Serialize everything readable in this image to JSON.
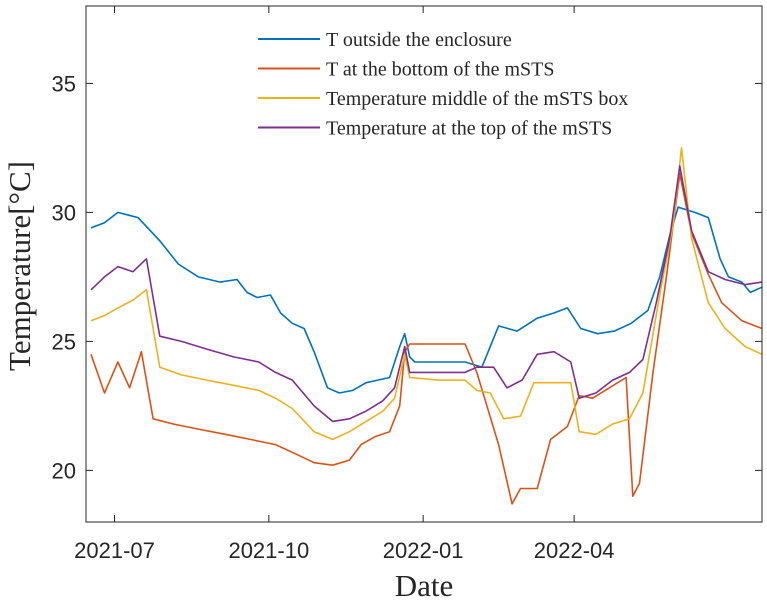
{
  "chart_data": {
    "type": "line",
    "xlabel": "Date",
    "ylabel": "Temperature[°C]",
    "x_ticks": [
      "2021-07",
      "2021-10",
      "2022-01",
      "2022-04"
    ],
    "y_ticks": [
      20,
      25,
      30,
      35
    ],
    "xlim": [
      "2021-06-14",
      "2022-07-22"
    ],
    "ylim": [
      18,
      38
    ],
    "legend_position": "top-right",
    "grid": false,
    "series": [
      {
        "name": "T outside the enclosure",
        "color": "#0072BD",
        "points": [
          [
            "2021-06-17",
            29.4
          ],
          [
            "2021-06-25",
            29.6
          ],
          [
            "2021-07-03",
            30.0
          ],
          [
            "2021-07-15",
            29.8
          ],
          [
            "2021-07-28",
            28.9
          ],
          [
            "2021-08-08",
            28.0
          ],
          [
            "2021-08-20",
            27.5
          ],
          [
            "2021-09-02",
            27.3
          ],
          [
            "2021-09-12",
            27.4
          ],
          [
            "2021-09-18",
            26.9
          ],
          [
            "2021-09-24",
            26.7
          ],
          [
            "2021-10-02",
            26.8
          ],
          [
            "2021-10-08",
            26.1
          ],
          [
            "2021-10-15",
            25.7
          ],
          [
            "2021-10-22",
            25.5
          ],
          [
            "2021-10-28",
            24.6
          ],
          [
            "2021-11-05",
            23.2
          ],
          [
            "2021-11-12",
            23.0
          ],
          [
            "2021-11-20",
            23.1
          ],
          [
            "2021-11-28",
            23.4
          ],
          [
            "2021-12-05",
            23.5
          ],
          [
            "2021-12-12",
            23.6
          ],
          [
            "2021-12-18",
            24.8
          ],
          [
            "2021-12-21",
            25.3
          ],
          [
            "2021-12-24",
            24.4
          ],
          [
            "2021-12-27",
            24.2
          ],
          [
            "2022-01-10",
            24.2
          ],
          [
            "2022-01-26",
            24.2
          ],
          [
            "2022-02-05",
            24.0
          ],
          [
            "2022-02-15",
            25.6
          ],
          [
            "2022-02-26",
            25.4
          ],
          [
            "2022-03-10",
            25.9
          ],
          [
            "2022-03-20",
            26.1
          ],
          [
            "2022-03-28",
            26.3
          ],
          [
            "2022-04-05",
            25.5
          ],
          [
            "2022-04-15",
            25.3
          ],
          [
            "2022-04-25",
            25.4
          ],
          [
            "2022-05-05",
            25.7
          ],
          [
            "2022-05-15",
            26.2
          ],
          [
            "2022-05-22",
            27.5
          ],
          [
            "2022-05-28",
            29.1
          ],
          [
            "2022-06-02",
            30.2
          ],
          [
            "2022-06-12",
            30.0
          ],
          [
            "2022-06-20",
            29.8
          ],
          [
            "2022-06-27",
            28.2
          ],
          [
            "2022-07-02",
            27.5
          ],
          [
            "2022-07-10",
            27.3
          ],
          [
            "2022-07-15",
            26.9
          ],
          [
            "2022-07-22",
            27.1
          ]
        ]
      },
      {
        "name": "T at the bottom of the mSTS",
        "color": "#D95319",
        "points": [
          [
            "2021-06-17",
            24.5
          ],
          [
            "2021-06-25",
            23.0
          ],
          [
            "2021-07-03",
            24.2
          ],
          [
            "2021-07-10",
            23.2
          ],
          [
            "2021-07-17",
            24.6
          ],
          [
            "2021-07-24",
            22.0
          ],
          [
            "2021-08-05",
            21.8
          ],
          [
            "2021-08-20",
            21.6
          ],
          [
            "2021-09-05",
            21.4
          ],
          [
            "2021-09-20",
            21.2
          ],
          [
            "2021-10-05",
            21.0
          ],
          [
            "2021-10-15",
            20.7
          ],
          [
            "2021-10-28",
            20.3
          ],
          [
            "2021-11-08",
            20.2
          ],
          [
            "2021-11-18",
            20.4
          ],
          [
            "2021-11-25",
            21.0
          ],
          [
            "2021-12-03",
            21.3
          ],
          [
            "2021-12-12",
            21.5
          ],
          [
            "2021-12-18",
            22.5
          ],
          [
            "2021-12-21",
            24.6
          ],
          [
            "2021-12-24",
            24.9
          ],
          [
            "2022-01-10",
            24.9
          ],
          [
            "2022-01-26",
            24.9
          ],
          [
            "2022-02-02",
            23.8
          ],
          [
            "2022-02-15",
            21.0
          ],
          [
            "2022-02-23",
            18.7
          ],
          [
            "2022-02-28",
            19.3
          ],
          [
            "2022-03-10",
            19.3
          ],
          [
            "2022-03-18",
            21.2
          ],
          [
            "2022-03-28",
            21.7
          ],
          [
            "2022-04-04",
            22.9
          ],
          [
            "2022-04-12",
            22.8
          ],
          [
            "2022-04-22",
            23.2
          ],
          [
            "2022-05-02",
            23.6
          ],
          [
            "2022-05-06",
            19.0
          ],
          [
            "2022-05-10",
            19.5
          ],
          [
            "2022-05-18",
            23.8
          ],
          [
            "2022-05-26",
            27.5
          ],
          [
            "2022-06-03",
            31.5
          ],
          [
            "2022-06-10",
            29.2
          ],
          [
            "2022-06-20",
            27.6
          ],
          [
            "2022-06-28",
            26.5
          ],
          [
            "2022-07-10",
            25.8
          ],
          [
            "2022-07-22",
            25.5
          ]
        ]
      },
      {
        "name": "Temperature middle of the mSTS box",
        "color": "#EDB120",
        "points": [
          [
            "2021-06-17",
            25.8
          ],
          [
            "2021-06-25",
            26.0
          ],
          [
            "2021-07-03",
            26.3
          ],
          [
            "2021-07-12",
            26.6
          ],
          [
            "2021-07-20",
            27.0
          ],
          [
            "2021-07-28",
            24.0
          ],
          [
            "2021-08-10",
            23.7
          ],
          [
            "2021-08-25",
            23.5
          ],
          [
            "2021-09-10",
            23.3
          ],
          [
            "2021-09-25",
            23.1
          ],
          [
            "2021-10-05",
            22.8
          ],
          [
            "2021-10-15",
            22.4
          ],
          [
            "2021-10-28",
            21.5
          ],
          [
            "2021-11-08",
            21.2
          ],
          [
            "2021-11-18",
            21.5
          ],
          [
            "2021-11-28",
            21.9
          ],
          [
            "2021-12-08",
            22.3
          ],
          [
            "2021-12-15",
            22.8
          ],
          [
            "2021-12-21",
            24.5
          ],
          [
            "2021-12-24",
            23.6
          ],
          [
            "2022-01-10",
            23.5
          ],
          [
            "2022-01-26",
            23.5
          ],
          [
            "2022-02-02",
            23.1
          ],
          [
            "2022-02-10",
            23.0
          ],
          [
            "2022-02-18",
            22.0
          ],
          [
            "2022-02-28",
            22.1
          ],
          [
            "2022-03-08",
            23.4
          ],
          [
            "2022-03-20",
            23.4
          ],
          [
            "2022-03-30",
            23.4
          ],
          [
            "2022-04-04",
            21.5
          ],
          [
            "2022-04-14",
            21.4
          ],
          [
            "2022-04-24",
            21.8
          ],
          [
            "2022-05-04",
            22.0
          ],
          [
            "2022-05-12",
            23.0
          ],
          [
            "2022-05-22",
            26.8
          ],
          [
            "2022-05-30",
            29.5
          ],
          [
            "2022-06-04",
            32.5
          ],
          [
            "2022-06-10",
            29.0
          ],
          [
            "2022-06-20",
            26.5
          ],
          [
            "2022-06-30",
            25.5
          ],
          [
            "2022-07-12",
            24.8
          ],
          [
            "2022-07-22",
            24.5
          ]
        ]
      },
      {
        "name": "Temperature at the top of the mSTS",
        "color": "#7E2F8E",
        "points": [
          [
            "2021-06-17",
            27.0
          ],
          [
            "2021-06-25",
            27.5
          ],
          [
            "2021-07-03",
            27.9
          ],
          [
            "2021-07-12",
            27.7
          ],
          [
            "2021-07-20",
            28.2
          ],
          [
            "2021-07-28",
            25.2
          ],
          [
            "2021-08-10",
            25.0
          ],
          [
            "2021-08-25",
            24.7
          ],
          [
            "2021-09-10",
            24.4
          ],
          [
            "2021-09-25",
            24.2
          ],
          [
            "2021-10-05",
            23.8
          ],
          [
            "2021-10-15",
            23.5
          ],
          [
            "2021-10-28",
            22.5
          ],
          [
            "2021-11-08",
            21.9
          ],
          [
            "2021-11-18",
            22.0
          ],
          [
            "2021-11-28",
            22.3
          ],
          [
            "2021-12-08",
            22.7
          ],
          [
            "2021-12-15",
            23.2
          ],
          [
            "2021-12-21",
            24.8
          ],
          [
            "2021-12-24",
            23.8
          ],
          [
            "2022-01-10",
            23.8
          ],
          [
            "2022-01-26",
            23.8
          ],
          [
            "2022-02-02",
            24.0
          ],
          [
            "2022-02-12",
            24.0
          ],
          [
            "2022-02-20",
            23.2
          ],
          [
            "2022-03-01",
            23.5
          ],
          [
            "2022-03-10",
            24.5
          ],
          [
            "2022-03-20",
            24.6
          ],
          [
            "2022-03-30",
            24.2
          ],
          [
            "2022-04-04",
            22.8
          ],
          [
            "2022-04-14",
            23.0
          ],
          [
            "2022-04-24",
            23.5
          ],
          [
            "2022-05-04",
            23.8
          ],
          [
            "2022-05-12",
            24.3
          ],
          [
            "2022-05-20",
            26.5
          ],
          [
            "2022-05-28",
            29.0
          ],
          [
            "2022-06-03",
            31.8
          ],
          [
            "2022-06-10",
            29.3
          ],
          [
            "2022-06-20",
            27.7
          ],
          [
            "2022-06-30",
            27.4
          ],
          [
            "2022-07-12",
            27.2
          ],
          [
            "2022-07-22",
            27.3
          ]
        ]
      }
    ]
  }
}
